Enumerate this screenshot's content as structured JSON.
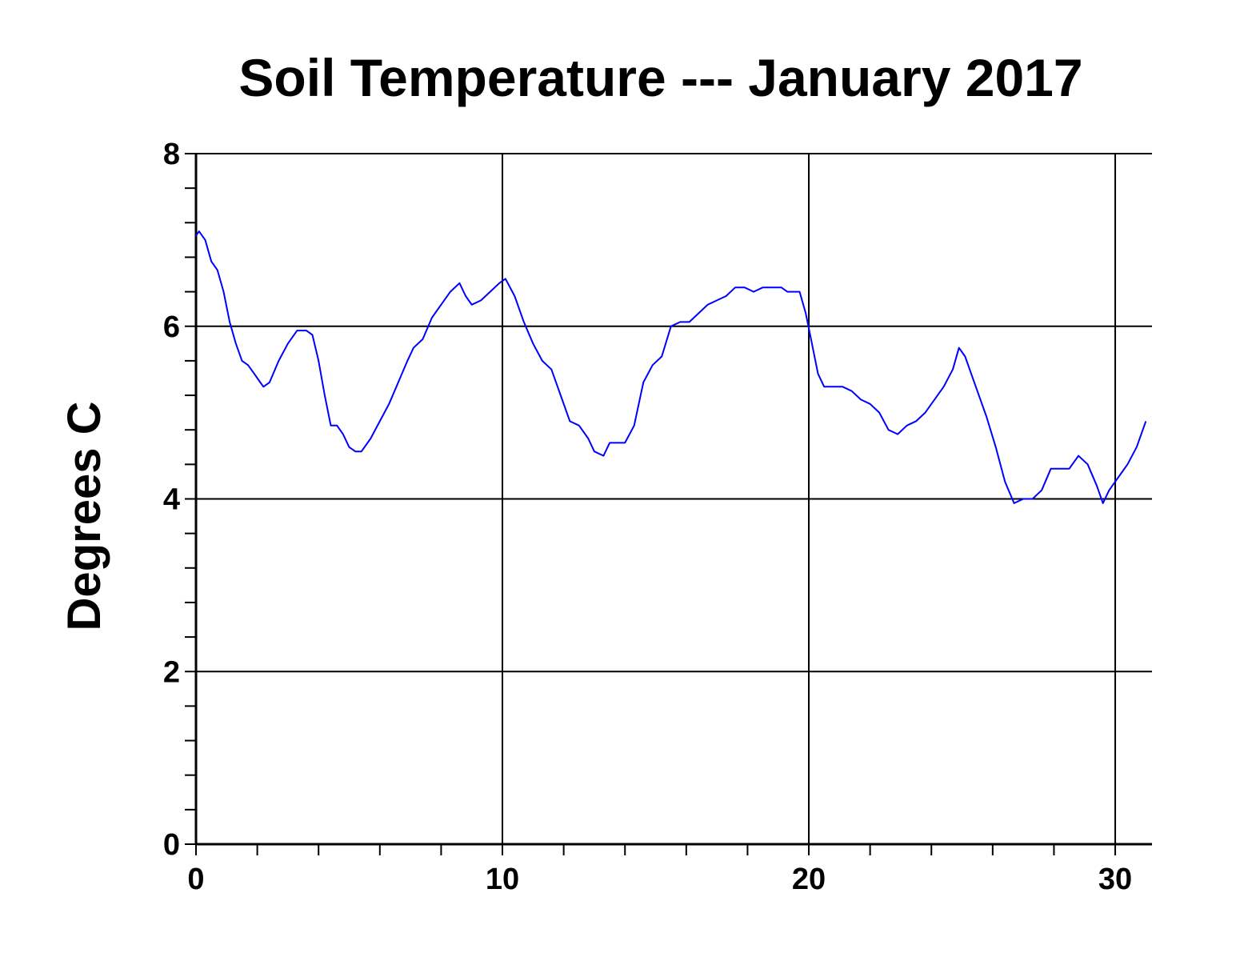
{
  "chart_data": {
    "type": "line",
    "title": "Soil Temperature --- January 2017",
    "xlabel": "",
    "ylabel": "Degrees C",
    "xlim": [
      0,
      31.2
    ],
    "ylim": [
      0,
      8
    ],
    "x_ticks": [
      0,
      10,
      20,
      30
    ],
    "y_ticks": [
      0,
      2,
      4,
      6,
      8
    ],
    "x_tick_labels": [
      "0",
      "10",
      "20",
      "30"
    ],
    "y_tick_labels": [
      "0",
      "2",
      "4",
      "6",
      "8"
    ],
    "x_minor_step": 2,
    "y_minor_step": 0.4,
    "grid": true,
    "line_color": "#0000ff",
    "series": [
      {
        "x": [
          0,
          0.1,
          0.3,
          0.5,
          0.7,
          0.9,
          1.1,
          1.3,
          1.5,
          1.7,
          1.9,
          2.0,
          2.1,
          2.2,
          2.4,
          2.7,
          3.0,
          3.3,
          3.6,
          3.8,
          4.0,
          4.2,
          4.4,
          4.6,
          4.8,
          5.0,
          5.2,
          5.4,
          5.7,
          6.0,
          6.3,
          6.6,
          6.9,
          7.1,
          7.4,
          7.7,
          8.0,
          8.3,
          8.6,
          8.8,
          9.0,
          9.3,
          9.6,
          9.9,
          10.1,
          10.4,
          10.7,
          11.0,
          11.3,
          11.6,
          11.9,
          12.2,
          12.5,
          12.8,
          13.0,
          13.3,
          13.5,
          13.7,
          14.0,
          14.3,
          14.6,
          14.9,
          15.2,
          15.5,
          15.8,
          16.1,
          16.4,
          16.7,
          17.0,
          17.3,
          17.6,
          17.9,
          18.2,
          18.5,
          18.8,
          19.1,
          19.3,
          19.5,
          19.7,
          19.9,
          20.1,
          20.3,
          20.5,
          20.8,
          21.1,
          21.4,
          21.7,
          22.0,
          22.3,
          22.6,
          22.9,
          23.2,
          23.5,
          23.8,
          24.1,
          24.4,
          24.7,
          24.9,
          25.1,
          25.3,
          25.5,
          25.8,
          26.1,
          26.4,
          26.7,
          27.0,
          27.3,
          27.6,
          27.9,
          28.2,
          28.5,
          28.8,
          29.1,
          29.4,
          29.6,
          29.8,
          30.1,
          30.4,
          30.7,
          31.0
        ],
        "y": [
          7.05,
          7.1,
          7.0,
          6.75,
          6.65,
          6.4,
          6.05,
          5.8,
          5.6,
          5.55,
          5.45,
          5.4,
          5.35,
          5.3,
          5.35,
          5.6,
          5.8,
          5.95,
          5.95,
          5.9,
          5.6,
          5.2,
          4.85,
          4.85,
          4.75,
          4.6,
          4.55,
          4.55,
          4.7,
          4.9,
          5.1,
          5.35,
          5.6,
          5.75,
          5.85,
          6.1,
          6.25,
          6.4,
          6.5,
          6.35,
          6.25,
          6.3,
          6.4,
          6.5,
          6.55,
          6.35,
          6.05,
          5.8,
          5.6,
          5.5,
          5.2,
          4.9,
          4.85,
          4.7,
          4.55,
          4.5,
          4.65,
          4.65,
          4.65,
          4.85,
          5.35,
          5.55,
          5.65,
          6.0,
          6.05,
          6.05,
          6.15,
          6.25,
          6.3,
          6.35,
          6.45,
          6.45,
          6.4,
          6.45,
          6.45,
          6.45,
          6.4,
          6.4,
          6.4,
          6.15,
          5.8,
          5.45,
          5.3,
          5.3,
          5.3,
          5.25,
          5.15,
          5.1,
          5.0,
          4.8,
          4.75,
          4.85,
          4.9,
          5.0,
          5.15,
          5.3,
          5.5,
          5.75,
          5.65,
          5.45,
          5.25,
          4.95,
          4.6,
          4.2,
          3.95,
          4.0,
          4.0,
          4.1,
          4.35,
          4.35,
          4.35,
          4.5,
          4.4,
          4.15,
          3.95,
          4.1,
          4.25,
          4.4,
          4.6,
          4.9
        ]
      }
    ]
  }
}
